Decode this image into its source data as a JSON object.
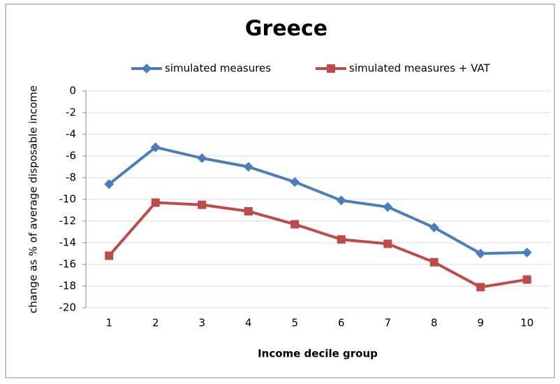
{
  "chart_data": {
    "type": "line",
    "title": "Greece",
    "x_label": "Income decile group",
    "y_label": "change as % of average disposable income",
    "categories": [
      "1",
      "2",
      "3",
      "4",
      "5",
      "6",
      "7",
      "8",
      "9",
      "10"
    ],
    "series": [
      {
        "name": "simulated measures",
        "color": "#4a7ebb",
        "marker": "diamond",
        "values": [
          -8.6,
          -5.2,
          -6.2,
          -7.0,
          -8.4,
          -10.1,
          -10.7,
          -12.6,
          -15.0,
          -14.9
        ]
      },
      {
        "name": "simulated measures + VAT",
        "color": "#be4b48",
        "marker": "square",
        "values": [
          -15.2,
          -10.3,
          -10.5,
          -11.1,
          -12.3,
          -13.7,
          -14.1,
          -15.8,
          -18.1,
          -17.4
        ]
      }
    ],
    "ylim": [
      -20,
      0
    ],
    "yticks": [
      0,
      -2,
      -4,
      -6,
      -8,
      -10,
      -12,
      -14,
      -16,
      -18,
      -20
    ],
    "grid": true,
    "legend": "top"
  }
}
